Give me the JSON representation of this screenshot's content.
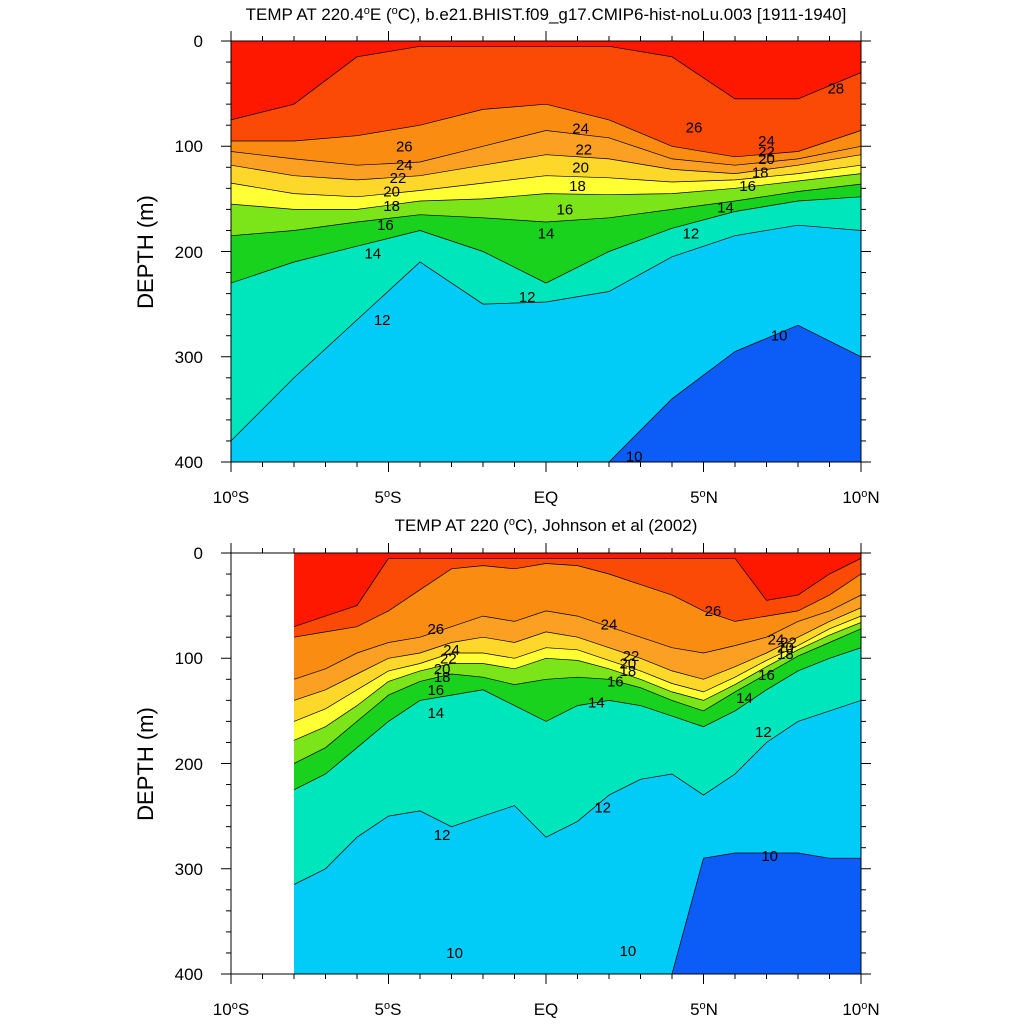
{
  "chart_data": [
    {
      "type": "heatmap",
      "title_prefix": "TEMP AT 220.4",
      "title_deg": "o",
      "title_mid": "E (",
      "title_unit": "C), b.e21.BHIST.f09_g17.CMIP6-hist-noLu.003 [1911-1940]",
      "xlabel": "",
      "ylabel": "DEPTH (m)",
      "xlim": [
        -10,
        10
      ],
      "ylim": [
        0,
        400
      ],
      "y_reversed": true,
      "data_xmin": -10,
      "y_ticks": [
        "0",
        "100",
        "200",
        "300",
        "400"
      ],
      "x_ticks": [
        {
          "main": "10",
          "deg": "o",
          "suffix": "S"
        },
        {
          "main": "5",
          "deg": "o",
          "suffix": "S"
        },
        {
          "main": "EQ",
          "deg": "",
          "suffix": ""
        },
        {
          "main": "5",
          "deg": "o",
          "suffix": "N"
        },
        {
          "main": "10",
          "deg": "o",
          "suffix": "N"
        }
      ],
      "grid": false,
      "lat": [
        -10,
        -8,
        -6,
        -4,
        -2,
        0,
        2,
        4,
        6,
        8,
        10
      ],
      "isotherms": [
        {
          "t": 28,
          "depth": [
            75,
            60,
            15,
            5,
            5,
            5,
            5,
            15,
            55,
            55,
            30
          ]
        },
        {
          "t": 26,
          "depth": [
            95,
            95,
            90,
            80,
            65,
            60,
            75,
            100,
            110,
            105,
            85
          ]
        },
        {
          "t": 24,
          "depth": [
            105,
            112,
            118,
            115,
            100,
            85,
            92,
            112,
            118,
            112,
            100
          ]
        },
        {
          "t": 22,
          "depth": [
            118,
            128,
            132,
            128,
            118,
            108,
            112,
            122,
            126,
            118,
            108
          ]
        },
        {
          "t": 20,
          "depth": [
            135,
            145,
            148,
            142,
            135,
            128,
            130,
            134,
            132,
            126,
            118
          ]
        },
        {
          "t": 18,
          "depth": [
            155,
            160,
            160,
            152,
            150,
            145,
            146,
            145,
            140,
            133,
            126
          ]
        },
        {
          "t": 16,
          "depth": [
            185,
            180,
            172,
            165,
            168,
            172,
            168,
            160,
            152,
            143,
            136
          ]
        },
        {
          "t": 14,
          "depth": [
            230,
            210,
            195,
            180,
            200,
            230,
            200,
            178,
            162,
            152,
            148
          ]
        },
        {
          "t": 12,
          "depth": [
            380,
            320,
            265,
            210,
            250,
            248,
            238,
            205,
            185,
            175,
            180
          ]
        },
        {
          "t": 10,
          "depth": [
            400,
            400,
            400,
            400,
            400,
            400,
            400,
            340,
            295,
            270,
            300
          ]
        }
      ],
      "labels": [
        {
          "text": "28",
          "lat": 9.2,
          "depth": 45
        },
        {
          "text": "26",
          "lat": -4.5,
          "depth": 100
        },
        {
          "text": "26",
          "lat": 4.7,
          "depth": 82
        },
        {
          "text": "24",
          "lat": -4.5,
          "depth": 118
        },
        {
          "text": "24",
          "lat": 1.1,
          "depth": 83
        },
        {
          "text": "24",
          "lat": 7.0,
          "depth": 95
        },
        {
          "text": "22",
          "lat": -4.7,
          "depth": 130
        },
        {
          "text": "22",
          "lat": 1.2,
          "depth": 103
        },
        {
          "text": "22",
          "lat": 7.0,
          "depth": 105
        },
        {
          "text": "20",
          "lat": -4.9,
          "depth": 143
        },
        {
          "text": "20",
          "lat": 1.1,
          "depth": 120
        },
        {
          "text": "20",
          "lat": 7.0,
          "depth": 112
        },
        {
          "text": "18",
          "lat": -4.9,
          "depth": 157
        },
        {
          "text": "18",
          "lat": 1.0,
          "depth": 138
        },
        {
          "text": "18",
          "lat": 6.8,
          "depth": 125
        },
        {
          "text": "16",
          "lat": -5.1,
          "depth": 175
        },
        {
          "text": "16",
          "lat": 0.6,
          "depth": 160
        },
        {
          "text": "16",
          "lat": 6.4,
          "depth": 138
        },
        {
          "text": "14",
          "lat": -5.5,
          "depth": 202
        },
        {
          "text": "14",
          "lat": 0.0,
          "depth": 183
        },
        {
          "text": "14",
          "lat": 5.7,
          "depth": 158
        },
        {
          "text": "12",
          "lat": -5.2,
          "depth": 265
        },
        {
          "text": "12",
          "lat": -0.6,
          "depth": 243
        },
        {
          "text": "12",
          "lat": 4.6,
          "depth": 183
        },
        {
          "text": "10",
          "lat": 7.4,
          "depth": 280
        },
        {
          "text": "10",
          "lat": 2.8,
          "depth": 395
        }
      ]
    },
    {
      "type": "heatmap",
      "title_prefix": "TEMP AT 220 (",
      "title_deg": "o",
      "title_mid": "",
      "title_unit": "C), Johnson et al (2002)",
      "xlabel": "",
      "ylabel": "DEPTH (m)",
      "xlim": [
        -10,
        10
      ],
      "ylim": [
        0,
        400
      ],
      "y_reversed": true,
      "data_xmin": -8,
      "y_ticks": [
        "0",
        "100",
        "200",
        "300",
        "400"
      ],
      "x_ticks": [
        {
          "main": "10",
          "deg": "o",
          "suffix": "S"
        },
        {
          "main": "5",
          "deg": "o",
          "suffix": "S"
        },
        {
          "main": "EQ",
          "deg": "",
          "suffix": ""
        },
        {
          "main": "5",
          "deg": "o",
          "suffix": "N"
        },
        {
          "main": "10",
          "deg": "o",
          "suffix": "N"
        }
      ],
      "grid": false,
      "lat": [
        -8,
        -7,
        -6,
        -5,
        -4,
        -3,
        -2,
        -1,
        0,
        1,
        2,
        3,
        4,
        5,
        6,
        7,
        8,
        9,
        10
      ],
      "isotherms": [
        {
          "t": 28,
          "depth": [
            70,
            60,
            50,
            5,
            5,
            5,
            5,
            5,
            5,
            5,
            5,
            5,
            5,
            5,
            5,
            45,
            40,
            20,
            5
          ]
        },
        {
          "t": 26,
          "depth": [
            80,
            75,
            70,
            55,
            35,
            15,
            12,
            15,
            10,
            12,
            20,
            30,
            40,
            55,
            65,
            60,
            55,
            40,
            20
          ]
        },
        {
          "t": 24,
          "depth": [
            120,
            110,
            95,
            85,
            80,
            70,
            60,
            65,
            55,
            60,
            70,
            80,
            90,
            95,
            88,
            80,
            65,
            55,
            40
          ]
        },
        {
          "t": 22,
          "depth": [
            140,
            130,
            115,
            100,
            95,
            85,
            80,
            85,
            75,
            80,
            90,
            100,
            112,
            120,
            108,
            95,
            80,
            65,
            52
          ]
        },
        {
          "t": 20,
          "depth": [
            160,
            148,
            130,
            112,
            105,
            95,
            95,
            100,
            90,
            92,
            102,
            112,
            124,
            132,
            118,
            102,
            88,
            72,
            60
          ]
        },
        {
          "t": 18,
          "depth": [
            178,
            165,
            145,
            122,
            112,
            105,
            105,
            110,
            100,
            102,
            110,
            120,
            132,
            140,
            125,
            108,
            92,
            78,
            66
          ]
        },
        {
          "t": 16,
          "depth": [
            200,
            185,
            160,
            135,
            122,
            115,
            118,
            125,
            120,
            118,
            120,
            128,
            140,
            150,
            132,
            115,
            98,
            85,
            72
          ]
        },
        {
          "t": 14,
          "depth": [
            225,
            210,
            185,
            160,
            140,
            135,
            130,
            145,
            160,
            145,
            140,
            145,
            155,
            165,
            150,
            130,
            112,
            100,
            90
          ]
        },
        {
          "t": 12,
          "depth": [
            315,
            300,
            270,
            250,
            245,
            260,
            250,
            240,
            270,
            255,
            230,
            215,
            210,
            230,
            210,
            180,
            160,
            150,
            140
          ]
        },
        {
          "t": 10,
          "depth": [
            400,
            400,
            400,
            400,
            400,
            400,
            400,
            400,
            400,
            400,
            400,
            400,
            400,
            290,
            285,
            285,
            285,
            290,
            290
          ]
        }
      ],
      "labels": [
        {
          "text": "26",
          "lat": -3.5,
          "depth": 72
        },
        {
          "text": "26",
          "lat": 5.3,
          "depth": 55
        },
        {
          "text": "24",
          "lat": -3.0,
          "depth": 92
        },
        {
          "text": "24",
          "lat": 2.0,
          "depth": 68
        },
        {
          "text": "24",
          "lat": 7.3,
          "depth": 82
        },
        {
          "text": "22",
          "lat": -3.1,
          "depth": 100
        },
        {
          "text": "22",
          "lat": 2.7,
          "depth": 98
        },
        {
          "text": "22",
          "lat": 7.7,
          "depth": 85
        },
        {
          "text": "20",
          "lat": -3.3,
          "depth": 110
        },
        {
          "text": "20",
          "lat": 2.6,
          "depth": 105
        },
        {
          "text": "20",
          "lat": 7.6,
          "depth": 90
        },
        {
          "text": "18",
          "lat": -3.3,
          "depth": 118
        },
        {
          "text": "18",
          "lat": 2.6,
          "depth": 112
        },
        {
          "text": "18",
          "lat": 7.6,
          "depth": 96
        },
        {
          "text": "16",
          "lat": -3.5,
          "depth": 130
        },
        {
          "text": "16",
          "lat": 2.2,
          "depth": 122
        },
        {
          "text": "16",
          "lat": 7.0,
          "depth": 116
        },
        {
          "text": "14",
          "lat": -3.5,
          "depth": 152
        },
        {
          "text": "14",
          "lat": 1.6,
          "depth": 142
        },
        {
          "text": "14",
          "lat": 6.3,
          "depth": 138
        },
        {
          "text": "12",
          "lat": 6.9,
          "depth": 170
        },
        {
          "text": "12",
          "lat": 1.8,
          "depth": 242
        },
        {
          "text": "12",
          "lat": -3.3,
          "depth": 268
        },
        {
          "text": "10",
          "lat": 7.1,
          "depth": 288
        },
        {
          "text": "10",
          "lat": -2.9,
          "depth": 380
        },
        {
          "text": "10",
          "lat": 2.6,
          "depth": 378
        }
      ]
    }
  ],
  "colors": {
    "above_28": "#ff1800",
    "26_28": "#fb4a06",
    "24_26": "#fa8c12",
    "22_24": "#fca024",
    "20_22": "#fdd82a",
    "18_20": "#ffff33",
    "16_18": "#7be51a",
    "14_16": "#19d21d",
    "12_14": "#00e6bc",
    "below_12_top": "#22f0ff",
    "below_12_mid": "#01ccf8",
    "below_12_low": "#03a6f5",
    "below_10": "#0c5df8",
    "contour_line": "#000000"
  }
}
